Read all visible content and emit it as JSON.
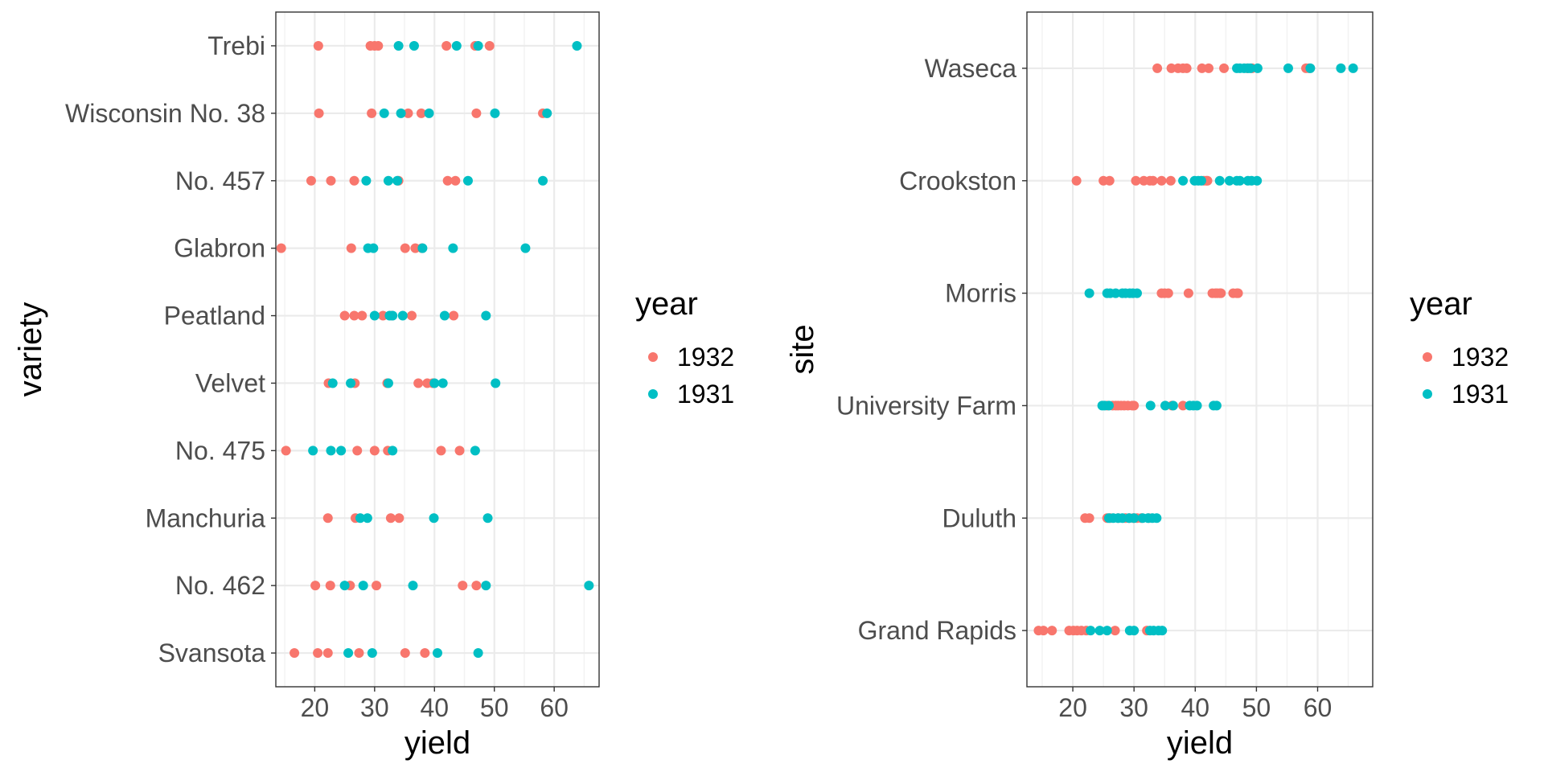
{
  "chart_data": [
    {
      "type": "scatter",
      "xlabel": "yield",
      "ylabel": "variety",
      "xlim": [
        13.5,
        67.5
      ],
      "x_ticks": [
        20,
        30,
        40,
        50,
        60
      ],
      "categories": [
        "Svansota",
        "No. 462",
        "Manchuria",
        "No. 475",
        "Velvet",
        "Peatland",
        "Glabron",
        "No. 457",
        "Wisconsin No. 38",
        "Trebi"
      ],
      "grid": true,
      "legend": {
        "title": "year",
        "position": "right",
        "entries": [
          "1932",
          "1931"
        ]
      },
      "series": [
        {
          "name": "1932",
          "color": "#F8766D",
          "points": [
            {
              "category": "Trebi",
              "x": [
                20.6,
                29.3,
                30.0,
                30.6,
                42.0,
                46.8,
                49.2
              ]
            },
            {
              "category": "Wisconsin No. 38",
              "x": [
                20.7,
                29.5,
                35.6,
                37.8,
                47.0,
                58.1
              ]
            },
            {
              "category": "No. 457",
              "x": [
                19.4,
                22.7,
                26.6,
                34.0,
                42.2,
                43.5
              ]
            },
            {
              "category": "Glabron",
              "x": [
                14.4,
                26.1,
                35.1,
                36.8,
                37.9
              ]
            },
            {
              "category": "Peatland",
              "x": [
                25.0,
                26.6,
                27.9,
                31.4,
                32.9,
                36.2,
                43.2
              ]
            },
            {
              "category": "Velvet",
              "x": [
                22.3,
                26.7,
                32.1,
                37.3,
                38.8,
                39.7
              ]
            },
            {
              "category": "No. 475",
              "x": [
                15.2,
                27.1,
                30.0,
                32.2,
                41.1,
                44.2
              ]
            },
            {
              "category": "Manchuria",
              "x": [
                22.2,
                26.8,
                32.7,
                34.1
              ]
            },
            {
              "category": "No. 462",
              "x": [
                20.1,
                22.6,
                25.9,
                30.3,
                44.7,
                47.0
              ]
            },
            {
              "category": "Svansota",
              "x": [
                16.6,
                20.5,
                22.2,
                27.4,
                35.1,
                38.4
              ]
            }
          ]
        },
        {
          "name": "1931",
          "color": "#00BFC4",
          "points": [
            {
              "category": "Trebi",
              "x": [
                34.0,
                36.6,
                43.7,
                47.3,
                63.8
              ]
            },
            {
              "category": "Wisconsin No. 38",
              "x": [
                31.6,
                34.4,
                39.1,
                50.1,
                58.8
              ]
            },
            {
              "category": "No. 457",
              "x": [
                28.6,
                32.3,
                33.8,
                45.6,
                58.1
              ]
            },
            {
              "category": "Glabron",
              "x": [
                28.9,
                29.8,
                38.0,
                43.1,
                55.2
              ]
            },
            {
              "category": "Peatland",
              "x": [
                30.0,
                32.5,
                33.0,
                34.7,
                41.7,
                48.6
              ]
            },
            {
              "category": "Velvet",
              "x": [
                23.0,
                26.0,
                32.3,
                40.0,
                41.4,
                50.2
              ]
            },
            {
              "category": "No. 475",
              "x": [
                19.7,
                22.7,
                24.4,
                33.0,
                46.8
              ]
            },
            {
              "category": "Manchuria",
              "x": [
                27.6,
                28.8,
                39.9,
                48.9
              ]
            },
            {
              "category": "No. 462",
              "x": [
                25.0,
                28.1,
                36.4,
                48.6,
                65.8
              ]
            },
            {
              "category": "Svansota",
              "x": [
                25.6,
                29.6,
                40.5,
                47.3
              ]
            }
          ]
        }
      ]
    },
    {
      "type": "scatter",
      "xlabel": "yield",
      "ylabel": "site",
      "xlim": [
        12.5,
        69.0
      ],
      "x_ticks": [
        20,
        30,
        40,
        50,
        60
      ],
      "categories": [
        "Grand Rapids",
        "Duluth",
        "University Farm",
        "Morris",
        "Crookston",
        "Waseca"
      ],
      "grid": true,
      "legend": {
        "title": "year",
        "position": "right",
        "entries": [
          "1932",
          "1931"
        ]
      },
      "series": [
        {
          "name": "1932",
          "color": "#F8766D",
          "points": [
            {
              "category": "Waseca",
              "x": [
                33.8,
                36.1,
                37.2,
                38.0,
                38.6,
                41.1,
                42.2,
                44.7,
                48.5,
                49.3,
                58.1,
                58.6
              ]
            },
            {
              "category": "Crookston",
              "x": [
                20.6,
                25.0,
                26.0,
                30.3,
                31.6,
                32.6,
                33.1,
                34.5,
                36.0,
                41.4,
                41.8,
                42.0
              ]
            },
            {
              "category": "Morris",
              "x": [
                34.5,
                35.0,
                35.6,
                38.9,
                42.8,
                43.3,
                43.6,
                44.0,
                44.2,
                46.2,
                46.8,
                47.0
              ]
            },
            {
              "category": "University Farm",
              "x": [
                25.6,
                26.5,
                27.0,
                27.4,
                27.9,
                28.4,
                29.0,
                29.7,
                30.0,
                36.2,
                38.0
              ]
            },
            {
              "category": "Duluth",
              "x": [
                22.0,
                22.7,
                25.6,
                26.1,
                27.4,
                28.6,
                29.2,
                29.9,
                30.5,
                31.2,
                32.4
              ]
            },
            {
              "category": "Grand Rapids",
              "x": [
                14.4,
                15.2,
                16.6,
                19.4,
                20.1,
                20.7,
                21.4,
                22.2,
                26.9,
                32.1
              ]
            }
          ]
        },
        {
          "name": "1931",
          "color": "#00BFC4",
          "points": [
            {
              "category": "Waseca",
              "x": [
                46.8,
                47.3,
                48.0,
                48.6,
                49.0,
                50.2,
                55.2,
                58.8,
                63.8,
                65.8
              ]
            },
            {
              "category": "Crookston",
              "x": [
                38.0,
                39.9,
                40.5,
                41.0,
                44.0,
                45.6,
                46.8,
                47.3,
                48.6,
                49.2,
                50.1
              ]
            },
            {
              "category": "Morris",
              "x": [
                22.7,
                25.6,
                26.1,
                27.0,
                28.1,
                28.6,
                29.3,
                29.8,
                30.5
              ]
            },
            {
              "category": "University Farm",
              "x": [
                24.8,
                25.2,
                25.9,
                32.7,
                35.1,
                36.4,
                39.1,
                39.7,
                40.3,
                43.0,
                43.5
              ]
            },
            {
              "category": "Duluth",
              "x": [
                25.9,
                26.6,
                27.4,
                28.1,
                29.2,
                30.0,
                31.4,
                32.3,
                33.0,
                33.7
              ]
            },
            {
              "category": "Grand Rapids",
              "x": [
                22.9,
                24.4,
                25.6,
                29.3,
                30.0,
                32.6,
                33.2,
                34.0,
                34.6
              ]
            }
          ]
        }
      ]
    }
  ]
}
